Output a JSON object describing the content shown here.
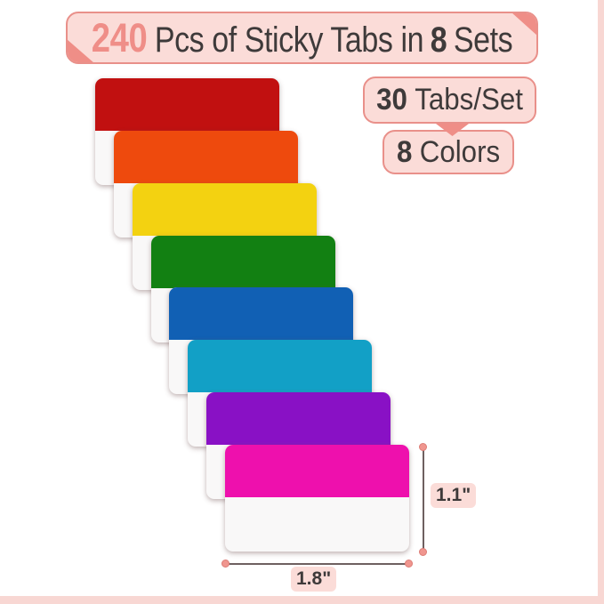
{
  "banner": {
    "count": "240",
    "middle_text": "Pcs of Sticky Tabs in",
    "sets_number": "8",
    "sets_word": "Sets"
  },
  "badges": {
    "tabs_per_set": {
      "number": "30",
      "label": "Tabs/Set"
    },
    "colors": {
      "number": "8",
      "label": "Colors"
    }
  },
  "tabs": [
    {
      "name": "red",
      "color": "#c11010"
    },
    {
      "name": "orange",
      "color": "#ee4a0d"
    },
    {
      "name": "yellow",
      "color": "#f3d211"
    },
    {
      "name": "green",
      "color": "#128012"
    },
    {
      "name": "blue",
      "color": "#1160b4"
    },
    {
      "name": "sky-blue",
      "color": "#12a0c6"
    },
    {
      "name": "purple",
      "color": "#8911c5"
    },
    {
      "name": "magenta",
      "color": "#ee10ad"
    }
  ],
  "dimensions": {
    "height_label": "1.1\"",
    "width_label": "1.8\""
  },
  "palette": {
    "pill_bg": "#fbdcd8",
    "pill_border": "#e9908a",
    "accent": "#ef8e87",
    "text_dark": "#3e3a3a",
    "number_accent": "#ef8e88",
    "edge_strip": "#f8d7d3",
    "tab_white": "#f9f8f8",
    "line": "#6e6060",
    "dot_fill": "#f0968f",
    "dot_border": "#dd7d76"
  }
}
